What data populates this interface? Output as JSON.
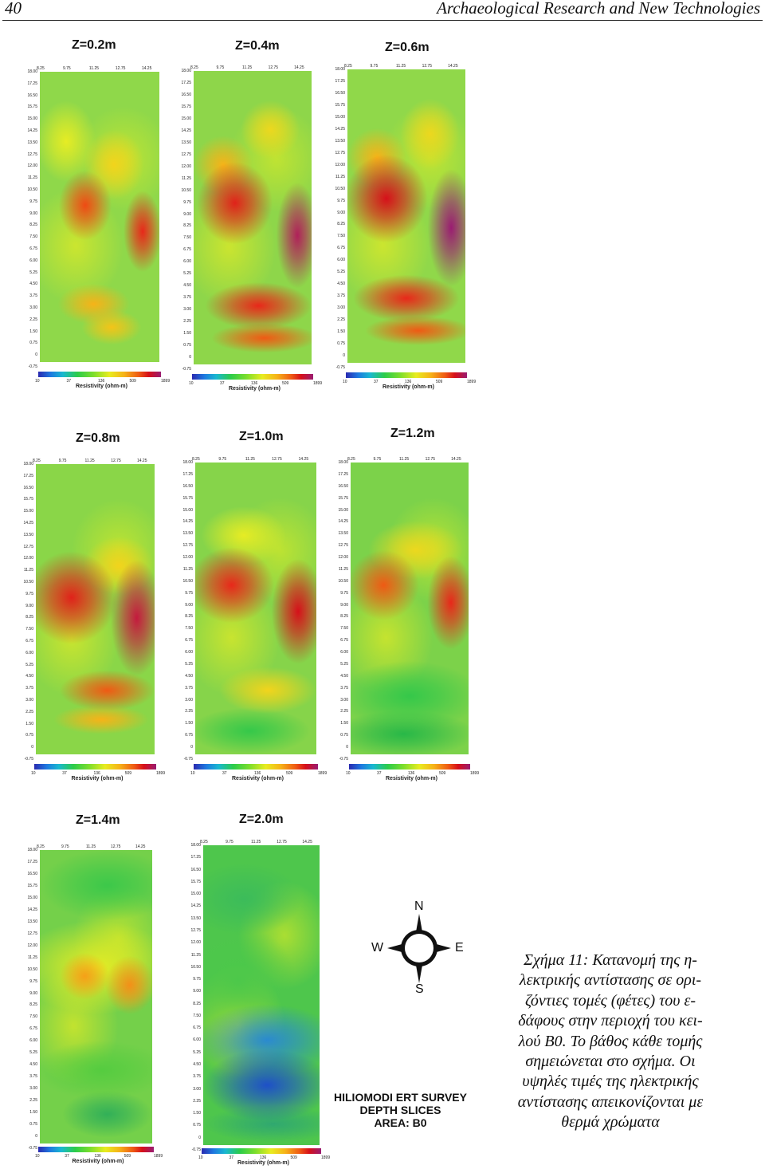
{
  "header": {
    "page_number": "40",
    "journal_title": "Archaeological Research and New Technologies"
  },
  "x_ticks": [
    "8.25",
    "9.75",
    "11.25",
    "12.75",
    "14.25"
  ],
  "y_ticks": [
    "18.00",
    "17.25",
    "16.50",
    "15.75",
    "15.00",
    "14.25",
    "13.50",
    "12.75",
    "12.00",
    "11.25",
    "10.50",
    "9.75",
    "9.00",
    "8.25",
    "7.50",
    "6.75",
    "6.00",
    "5.25",
    "4.50",
    "3.75",
    "3.00",
    "2.25",
    "1.50",
    "0.75",
    "0",
    "-0.75"
  ],
  "colorbar": {
    "ticks": [
      "10",
      "37",
      "136",
      "509",
      "1899"
    ],
    "title": "Resistivity (ohm-m)",
    "colors": [
      "#2a2ab0",
      "#1e78e0",
      "#19b8d0",
      "#2ccc4a",
      "#7dde2c",
      "#e8ec20",
      "#f6b318",
      "#ef5a14",
      "#d6101a",
      "#9a1c72"
    ]
  },
  "slices": [
    {
      "depth_label": "Z=0.2m"
    },
    {
      "depth_label": "Z=0.4m"
    },
    {
      "depth_label": "Z=0.6m"
    },
    {
      "depth_label": "Z=0.8m"
    },
    {
      "depth_label": "Z=1.0m"
    },
    {
      "depth_label": "Z=1.2m"
    },
    {
      "depth_label": "Z=1.4m"
    },
    {
      "depth_label": "Z=2.0m"
    }
  ],
  "compass": {
    "north": "N",
    "south": "S",
    "east": "E",
    "west": "W"
  },
  "survey_label": {
    "line1": "HILIOMODI ERT SURVEY",
    "line2": "DEPTH SLICES",
    "line3": "AREA: B0"
  },
  "caption": {
    "lines": [
      "Σχήμα 11: Κατανομή της η-",
      "λεκτρικής αντίστασης σε ορι-",
      "ζόντιες τομές (φέτες) του ε-",
      "δάφους στην περιοχή του κει-",
      "λού Β0. Το βάθος κάθε τομής",
      "σημειώνεται στο σχήμα. Οι",
      "υψηλές τιμές της ηλεκτρικής",
      "αντίστασης απεικονίζονται με",
      "θερμά χρώματα"
    ]
  }
}
